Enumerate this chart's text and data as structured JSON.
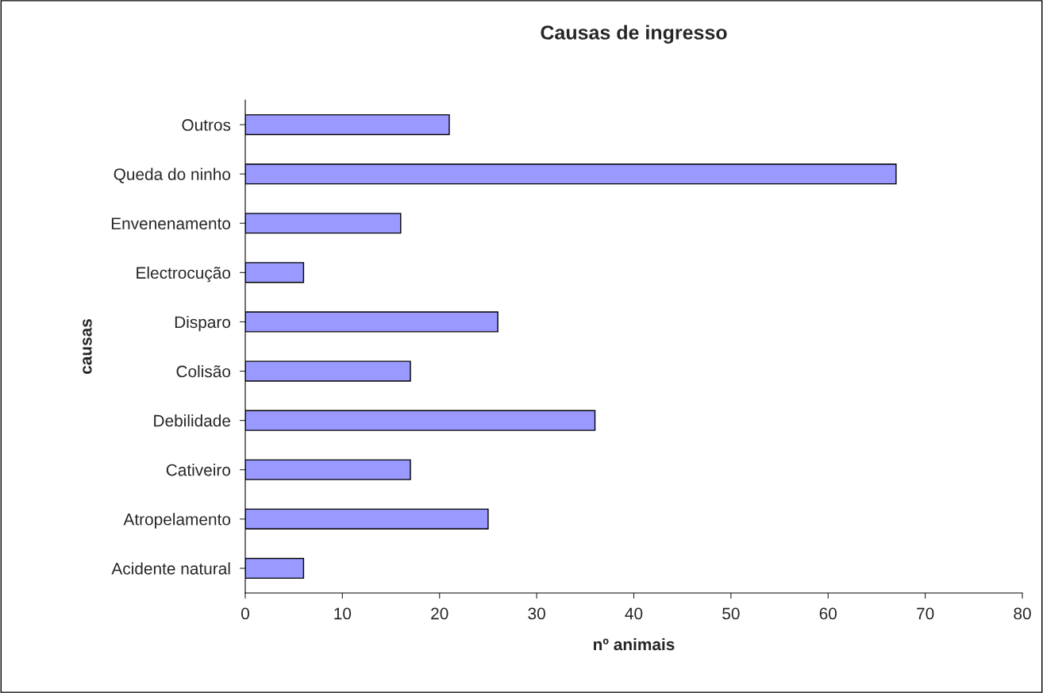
{
  "chart_data": {
    "type": "bar",
    "orientation": "horizontal",
    "title": "Causas de ingresso",
    "xlabel": "nº animais",
    "ylabel": "causas",
    "categories": [
      "Outros",
      "Queda do ninho",
      "Envenenamento",
      "Electrocução",
      "Disparo",
      "Colisão",
      "Debilidade",
      "Cativeiro",
      "Atropelamento",
      "Acidente natural"
    ],
    "values": [
      21,
      67,
      16,
      6,
      26,
      17,
      36,
      17,
      25,
      6
    ],
    "color": "#9999ff",
    "xlim": [
      0,
      80
    ],
    "xticks": [
      0,
      10,
      20,
      30,
      40,
      50,
      60,
      70,
      80
    ],
    "grid": false,
    "legend": false
  }
}
